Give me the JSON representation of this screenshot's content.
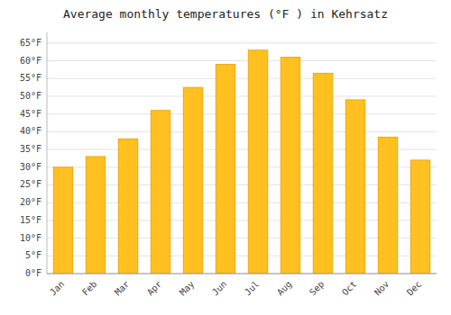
{
  "chart_data": {
    "type": "bar",
    "title": "Average monthly temperatures (°F ) in Kehrsatz",
    "categories": [
      "Jan",
      "Feb",
      "Mar",
      "Apr",
      "May",
      "Jun",
      "Jul",
      "Aug",
      "Sep",
      "Oct",
      "Nov",
      "Dec"
    ],
    "values": [
      30,
      33,
      38,
      46,
      52.5,
      59,
      63,
      61,
      56.5,
      49,
      38.5,
      32
    ],
    "color": "#FFC020",
    "ylim": [
      0,
      68
    ],
    "yticks": [
      {
        "value": 0,
        "label": "0°F"
      },
      {
        "value": 5,
        "label": "5°F"
      },
      {
        "value": 10,
        "label": "10°F"
      },
      {
        "value": 15,
        "label": "15°F"
      },
      {
        "value": 20,
        "label": "20°F"
      },
      {
        "value": 25,
        "label": "25°F"
      },
      {
        "value": 30,
        "label": "30°F"
      },
      {
        "value": 35,
        "label": "35°F"
      },
      {
        "value": 40,
        "label": "40°F"
      },
      {
        "value": 45,
        "label": "45°F"
      },
      {
        "value": 50,
        "label": "50°F"
      },
      {
        "value": 55,
        "label": "55°F"
      },
      {
        "value": 60,
        "label": "60°F"
      },
      {
        "value": 65,
        "label": "65°F"
      }
    ],
    "grid": true
  }
}
